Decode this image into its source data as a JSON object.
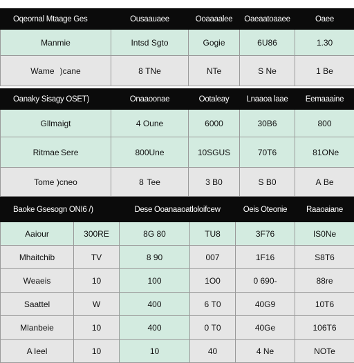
{
  "section1": {
    "header": [
      "Oqeornal Mtaage Ges",
      "Ousaauaee",
      "Ooaaaalee",
      "Oaeaatoaaee",
      "Oaee"
    ],
    "rows": [
      [
        "Manmie",
        "Intsd Sgto",
        "Gogie",
        "6U86",
        "1.30"
      ],
      [
        "Wame    )cane",
        "8 TNe",
        "NTe",
        "S Ne",
        "1 Be"
      ]
    ]
  },
  "section2": {
    "header": [
      "Oanaky Sisagy OSET)",
      "Onaaoonae",
      "Ootaleay",
      "Lnaaoa laae",
      "Eemaaaine"
    ],
    "rows": [
      [
        "Gllmaigt",
        "4 Oune",
        "6000",
        "30B6",
        "800"
      ],
      [
        "Ritmae Sere",
        "800Une",
        "10SGUS",
        "70T6",
        " 81ONe"
      ],
      [
        "Tome  )cneo",
        "8  Tee",
        "3 B0",
        "S B0",
        "A Be"
      ]
    ]
  },
  "section3": {
    "header": [
      "Baoke Gsesogn ONI6 /)",
      "Dese Ooanaaoatloloifcew",
      "Oeis Oteonie",
      "Raaoaiane"
    ],
    "rows": [
      [
        "Aaiour",
        "300RE",
        "8G 80",
        "TU8",
        "3F76",
        "IS0Ne"
      ],
      [
        "Mhaitchib",
        "TV",
        "8 90",
        "007",
        "1F16",
        "S8T6"
      ],
      [
        "Weaeis",
        "10",
        "100",
        "1O0",
        "0 690-",
        "88re"
      ],
      [
        "Saattel",
        "W",
        "400",
        "6 T0",
        "40G9",
        "10T6"
      ],
      [
        "Mlanbeie",
        "10",
        "400",
        "0 T0",
        "40Ge",
        "106T6"
      ],
      [
        "A Ieel",
        "10",
        "10",
        "40",
        "4 Ne",
        "NOTe"
      ]
    ]
  }
}
